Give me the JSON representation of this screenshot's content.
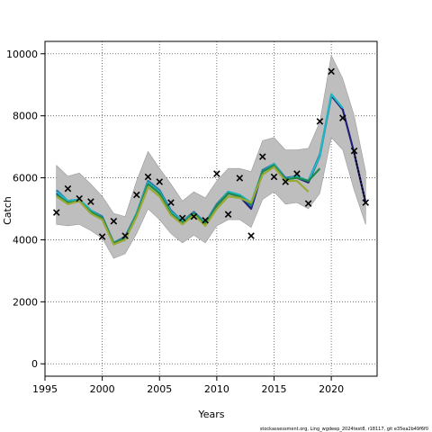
{
  "chart_data": {
    "type": "line",
    "title": "",
    "xlabel": "Years",
    "ylabel": "Catch",
    "xlim": [
      1995,
      2024
    ],
    "ylim": [
      -400,
      10400
    ],
    "x_ticks": [
      1995,
      2000,
      2005,
      2010,
      2015,
      2020
    ],
    "y_ticks": [
      0,
      2000,
      4000,
      6000,
      8000,
      10000
    ],
    "grid": true,
    "legend": "none",
    "confidence_band": {
      "x": [
        1996,
        1997,
        1998,
        1999,
        2000,
        2001,
        2002,
        2003,
        2004,
        2005,
        2006,
        2007,
        2008,
        2009,
        2010,
        2011,
        2012,
        2013,
        2014,
        2015,
        2016,
        2017,
        2018,
        2019,
        2020,
        2021,
        2022,
        2023
      ],
      "lower": [
        4500,
        4450,
        4500,
        4300,
        4050,
        3400,
        3550,
        4200,
        5000,
        4650,
        4200,
        3900,
        4150,
        3900,
        4450,
        4650,
        4650,
        4400,
        5300,
        5550,
        5150,
        5200,
        5000,
        5500,
        7300,
        6900,
        5600,
        4500
      ],
      "upper": [
        6400,
        6050,
        6150,
        5800,
        5400,
        4850,
        4750,
        5900,
        6850,
        6300,
        5800,
        5250,
        5550,
        5350,
        5900,
        6300,
        6300,
        6200,
        7200,
        7300,
        6900,
        6900,
        6950,
        7800,
        9950,
        9200,
        8000,
        6200
      ],
      "color": "#bebebe"
    },
    "series": [
      {
        "x": [
          1996,
          1997,
          1998,
          1999,
          2000,
          2001,
          2002,
          2003,
          2004,
          2005,
          2006,
          2007,
          2008,
          2009,
          2010,
          2011,
          2012,
          2013,
          2014,
          2015,
          2016,
          2017,
          2018,
          2019,
          2020,
          2021,
          2022,
          2023
        ],
        "values": [
          5500,
          5250,
          5300,
          4900,
          4700,
          3900,
          4050,
          4800,
          5850,
          5500,
          4850,
          4550,
          4850,
          4500,
          5100,
          5500,
          5400,
          5000,
          6200,
          6450,
          5950,
          6000,
          5850,
          6700,
          8650,
          8200,
          6800,
          5200
        ],
        "color": "#1f1f7a"
      },
      {
        "x": [
          1996,
          1997,
          1998,
          1999,
          2000,
          2001,
          2002,
          2003,
          2004,
          2005,
          2006,
          2007,
          2008,
          2009,
          2010,
          2011,
          2012,
          2013,
          2014,
          2015,
          2016,
          2017,
          2018,
          2019,
          2020
        ],
        "values": [
          5600,
          5250,
          5300,
          4950,
          4750,
          3900,
          4100,
          4850,
          5900,
          5600,
          4950,
          4600,
          4900,
          4550,
          5150,
          5550,
          5450,
          5100,
          6250,
          6450,
          6000,
          6050,
          5900,
          6750,
          8650
        ],
        "color": "#2a6fa8"
      },
      {
        "x": [
          1996,
          1997,
          1998,
          1999,
          2000,
          2001,
          2002,
          2003,
          2004,
          2005,
          2006,
          2007,
          2008,
          2009,
          2010,
          2011,
          2012,
          2013,
          2014,
          2015,
          2016,
          2017,
          2018,
          2019,
          2020,
          2021
        ],
        "values": [
          5550,
          5250,
          5300,
          4950,
          4700,
          3900,
          4050,
          4850,
          5850,
          5550,
          4900,
          4600,
          4850,
          4550,
          5100,
          5550,
          5450,
          5200,
          6200,
          6450,
          5950,
          6050,
          5900,
          6700,
          8700,
          8250
        ],
        "color": "#1fb8c4"
      },
      {
        "x": [
          1996,
          1997,
          1998,
          1999,
          2000,
          2001,
          2002,
          2003,
          2004,
          2005,
          2006,
          2007,
          2008,
          2009,
          2010,
          2011,
          2012,
          2013,
          2014,
          2015,
          2016,
          2017,
          2018,
          2019
        ],
        "values": [
          5450,
          5200,
          5250,
          4900,
          4700,
          3900,
          4050,
          4800,
          5800,
          5500,
          4850,
          4550,
          4850,
          4500,
          5100,
          5500,
          5400,
          5150,
          6200,
          6400,
          5950,
          6000,
          5900,
          6300
        ],
        "color": "#1e8a4a"
      },
      {
        "x": [
          1996,
          1997,
          1998,
          1999,
          2000,
          2001,
          2002,
          2003,
          2004,
          2005,
          2006,
          2007,
          2008,
          2009,
          2010,
          2011,
          2012,
          2013,
          2014,
          2015,
          2016,
          2017,
          2018
        ],
        "values": [
          5400,
          5150,
          5250,
          4850,
          4650,
          3850,
          4000,
          4750,
          5700,
          5400,
          4800,
          4500,
          4800,
          4450,
          5000,
          5400,
          5350,
          5200,
          6100,
          6350,
          5900,
          5900,
          5550
        ],
        "color": "#9aa836"
      }
    ],
    "observed": {
      "x": [
        1996,
        1997,
        1998,
        1999,
        2000,
        2001,
        2002,
        2003,
        2004,
        2005,
        2006,
        2007,
        2008,
        2009,
        2010,
        2011,
        2012,
        2013,
        2014,
        2015,
        2016,
        2017,
        2018,
        2019,
        2020,
        2021,
        2022,
        2023
      ],
      "values": [
        4880,
        5650,
        5330,
        5230,
        4100,
        4600,
        4130,
        5450,
        6030,
        5870,
        5200,
        4700,
        4750,
        4630,
        6130,
        4820,
        5990,
        4130,
        6680,
        6030,
        5870,
        6130,
        5170,
        7820,
        9430,
        7930,
        6870,
        5200
      ]
    },
    "footer_text": "stockassessment.org, Ling_wgdeep_2024test8, r18117, git e35ea2b49f6f0"
  }
}
